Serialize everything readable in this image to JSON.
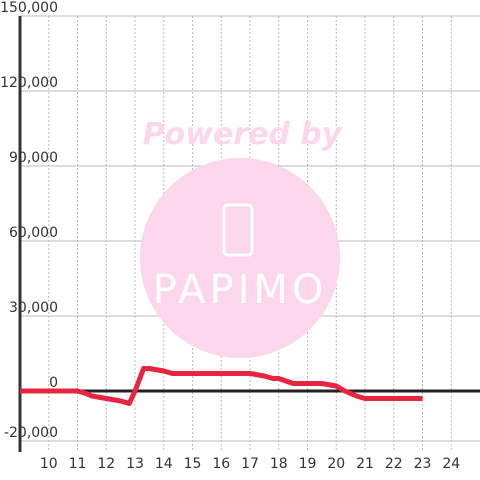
{
  "chart_data": {
    "type": "line",
    "x": [
      9,
      10,
      11,
      11.3,
      11.5,
      12,
      12.5,
      12.8,
      13,
      13.3,
      13.5,
      14,
      14.3,
      15,
      16,
      17,
      17.5,
      17.8,
      18,
      18.5,
      19,
      19.5,
      20,
      20.3,
      20.7,
      21,
      22,
      23
    ],
    "series": [
      {
        "color": "#e8253f",
        "values": [
          0,
          0,
          0,
          -1000,
          -2000,
          -3000,
          -4000,
          -5000,
          0,
          9000,
          9000,
          8000,
          7000,
          7000,
          7000,
          7000,
          6000,
          5000,
          5000,
          3000,
          3000,
          3000,
          2000,
          0,
          -2000,
          -3000,
          -3000,
          -3000
        ]
      }
    ],
    "xlim": [
      9,
      25
    ],
    "xticks": [
      10,
      11,
      12,
      13,
      14,
      15,
      16,
      17,
      18,
      19,
      20,
      21,
      22,
      23,
      24
    ],
    "ylim": [
      -20000,
      150000
    ],
    "yticks": [
      {
        "value": -20000,
        "label": "-20,000"
      },
      0,
      {
        "value": 30000,
        "label": "30,000"
      },
      {
        "value": 60000,
        "label": "60,000"
      },
      {
        "value": 90000,
        "label": "90,000"
      },
      {
        "value": 120000,
        "label": "120,000"
      },
      {
        "value": 150000,
        "label": "150,000"
      }
    ],
    "grid": true,
    "watermark": {
      "text": "Powered by",
      "logo": "PAPIMO"
    }
  }
}
